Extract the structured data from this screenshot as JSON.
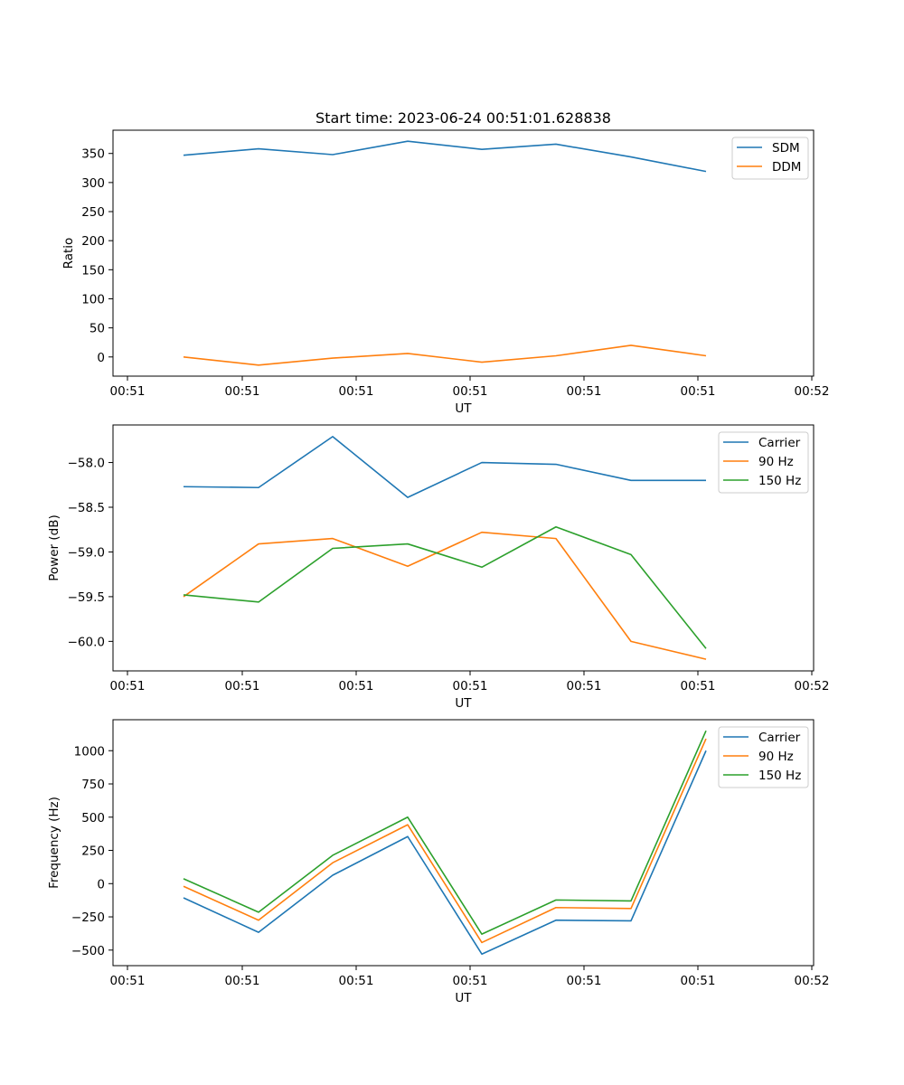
{
  "chart_data": [
    {
      "type": "line",
      "title": "Start time: 2023-06-24 00:51:01.628838",
      "xlabel": "UT",
      "ylabel": "Ratio",
      "x_tick_labels": [
        "00:51",
        "00:51",
        "00:51",
        "00:51",
        "00:51",
        "00:51",
        "00:52"
      ],
      "y_ticks": [
        0,
        50,
        100,
        150,
        200,
        250,
        300,
        350
      ],
      "ylim": [
        -33,
        390
      ],
      "legend": "upper right",
      "grid": false,
      "series": [
        {
          "name": "SDM",
          "color": "#1f77b4",
          "values": [
            347,
            358,
            348,
            371,
            357,
            366,
            344,
            319
          ]
        },
        {
          "name": "DDM",
          "color": "#ff7f0e",
          "values": [
            0,
            -14,
            -2,
            6,
            -9,
            2,
            20,
            2
          ]
        }
      ]
    },
    {
      "type": "line",
      "title": "",
      "xlabel": "UT",
      "ylabel": "Power (dB)",
      "x_tick_labels": [
        "00:51",
        "00:51",
        "00:51",
        "00:51",
        "00:51",
        "00:51",
        "00:52"
      ],
      "y_ticks": [
        -60.0,
        -59.5,
        -59.0,
        -58.5,
        -58.0
      ],
      "ylim": [
        -60.33,
        -57.58
      ],
      "legend": "upper right",
      "grid": false,
      "series": [
        {
          "name": "Carrier",
          "color": "#1f77b4",
          "values": [
            -58.27,
            -58.28,
            -57.71,
            -58.39,
            -58.0,
            -58.02,
            -58.2,
            -58.2
          ]
        },
        {
          "name": "90 Hz",
          "color": "#ff7f0e",
          "values": [
            -59.5,
            -58.91,
            -58.85,
            -59.16,
            -58.78,
            -58.85,
            -60.0,
            -60.2
          ]
        },
        {
          "name": "150 Hz",
          "color": "#2ca02c",
          "values": [
            -59.48,
            -59.56,
            -58.96,
            -58.91,
            -59.17,
            -58.72,
            -59.03,
            -60.08
          ]
        }
      ]
    },
    {
      "type": "line",
      "title": "",
      "xlabel": "UT",
      "ylabel": "Frequency (Hz)",
      "x_tick_labels": [
        "00:51",
        "00:51",
        "00:51",
        "00:51",
        "00:51",
        "00:51",
        "00:52"
      ],
      "y_ticks": [
        -500,
        -250,
        0,
        250,
        500,
        750,
        1000
      ],
      "ylim": [
        -617,
        1233
      ],
      "legend": "upper right",
      "grid": false,
      "series": [
        {
          "name": "Carrier",
          "color": "#1f77b4",
          "values": [
            -107,
            -366,
            63,
            354,
            -530,
            -275,
            -280,
            1000
          ]
        },
        {
          "name": "90 Hz",
          "color": "#ff7f0e",
          "values": [
            -20,
            -275,
            157,
            443,
            -443,
            -180,
            -187,
            1090
          ]
        },
        {
          "name": "150 Hz",
          "color": "#2ca02c",
          "values": [
            37,
            -215,
            213,
            500,
            -380,
            -123,
            -130,
            1150
          ]
        }
      ]
    }
  ]
}
